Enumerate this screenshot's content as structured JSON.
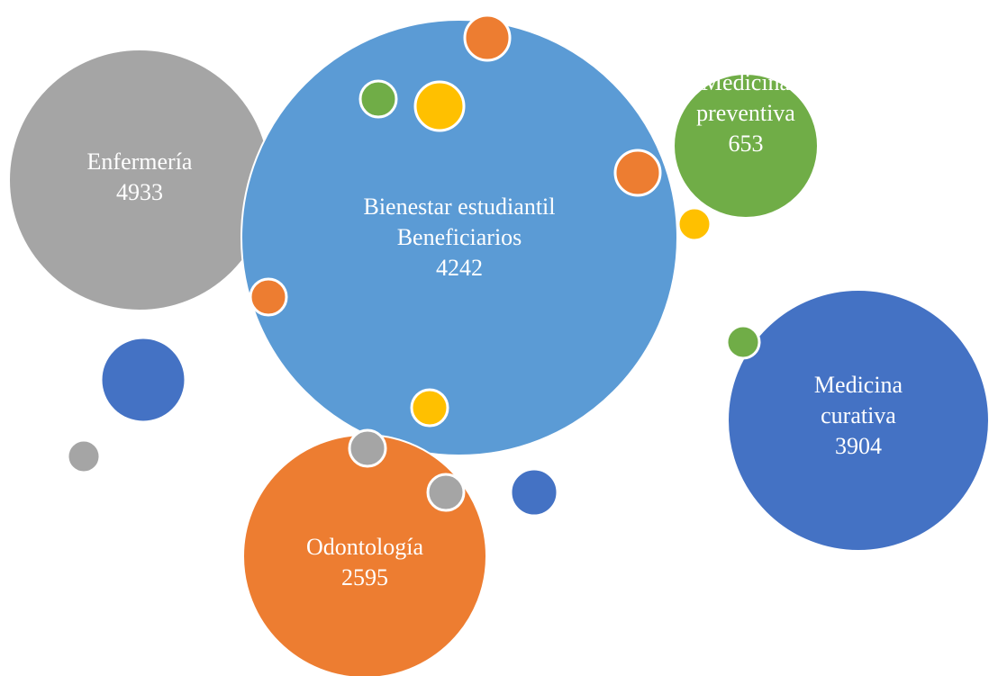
{
  "nodes": [
    {
      "label": [
        "Enfermería"
      ],
      "value": 4933
    },
    {
      "label": [
        "Bienestar estudiantil",
        "Beneficiarios"
      ],
      "value": 4242
    },
    {
      "label": [
        "Medicina",
        "preventiva"
      ],
      "value": 653
    },
    {
      "label": [
        "Medicina",
        "curativa"
      ],
      "value": 3904
    },
    {
      "label": [
        "Odontología"
      ],
      "value": 2595
    }
  ]
}
